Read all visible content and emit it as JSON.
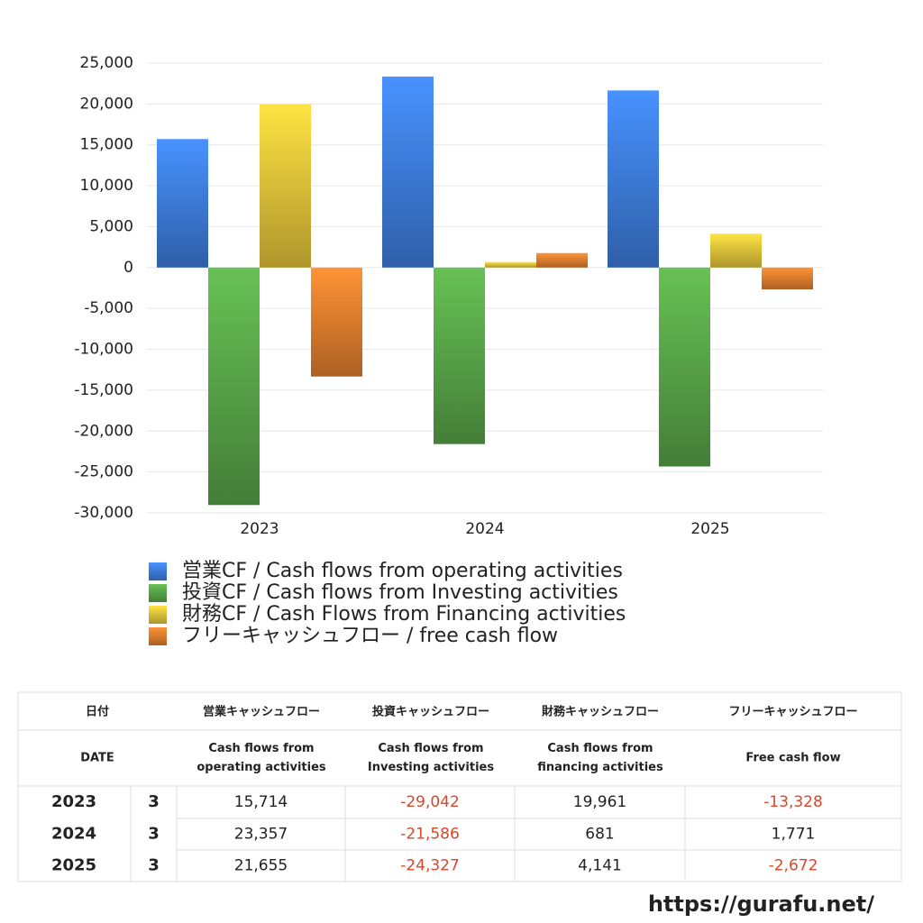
{
  "chart_data": {
    "type": "bar",
    "categories": [
      "2023",
      "2024",
      "2025"
    ],
    "series": [
      {
        "name": "営業CF / Cash flows from operating activities",
        "color": "#3f7fe0",
        "values": [
          15714,
          23357,
          21655
        ]
      },
      {
        "name": "投資CF / Cash flows from Investing activities",
        "color": "#5aa84a",
        "values": [
          -29042,
          -21586,
          -24327
        ]
      },
      {
        "name": "財務CF / Cash Flows from Financing activities",
        "color": "#e8c63a",
        "values": [
          19961,
          681,
          4141
        ]
      },
      {
        "name": "フリーキャッシュフロー / free cash flow",
        "color": "#e6802e",
        "values": [
          -13328,
          1771,
          -2672
        ]
      }
    ],
    "ylim": [
      -30000,
      25000
    ],
    "yticks": [
      {
        "value": -30000,
        "label": "-30,000"
      },
      {
        "value": -25000,
        "label": "-25,000"
      },
      {
        "value": -20000,
        "label": "-20,000"
      },
      {
        "value": -15000,
        "label": "-15,000"
      },
      {
        "value": -10000,
        "label": "-10,000"
      },
      {
        "value": -5000,
        "label": "-5,000"
      },
      0,
      {
        "value": 5000,
        "label": "5,000"
      },
      {
        "value": 10000,
        "label": "10,000"
      },
      {
        "value": 15000,
        "label": "15,000"
      },
      {
        "value": 20000,
        "label": "20,000"
      },
      {
        "value": 25000,
        "label": "25,000"
      }
    ],
    "grid": true,
    "legend": "bottom"
  },
  "table": {
    "header": [
      "日付",
      "営業キャッシュフロー",
      "投資キャッシュフロー",
      "財務キャッシュフロー",
      "フリーキャッシュフロー"
    ],
    "subheader": [
      [
        "DATE"
      ],
      [
        "Cash flows from",
        "operating activities"
      ],
      [
        "Cash flows from",
        "Investing activities"
      ],
      [
        "Cash flows from",
        "financing activities"
      ],
      [
        "Free cash flow"
      ]
    ],
    "rows": [
      [
        "2023",
        "3",
        "15,714",
        "-29,042",
        "19,961",
        "-13,328"
      ],
      [
        "2024",
        "3",
        "23,357",
        "-21,586",
        "681",
        "1,771"
      ],
      [
        "2025",
        "3",
        "21,655",
        "-24,327",
        "4,141",
        "-2,672"
      ]
    ]
  },
  "footer": {
    "url": "https://gurafu.net/"
  }
}
